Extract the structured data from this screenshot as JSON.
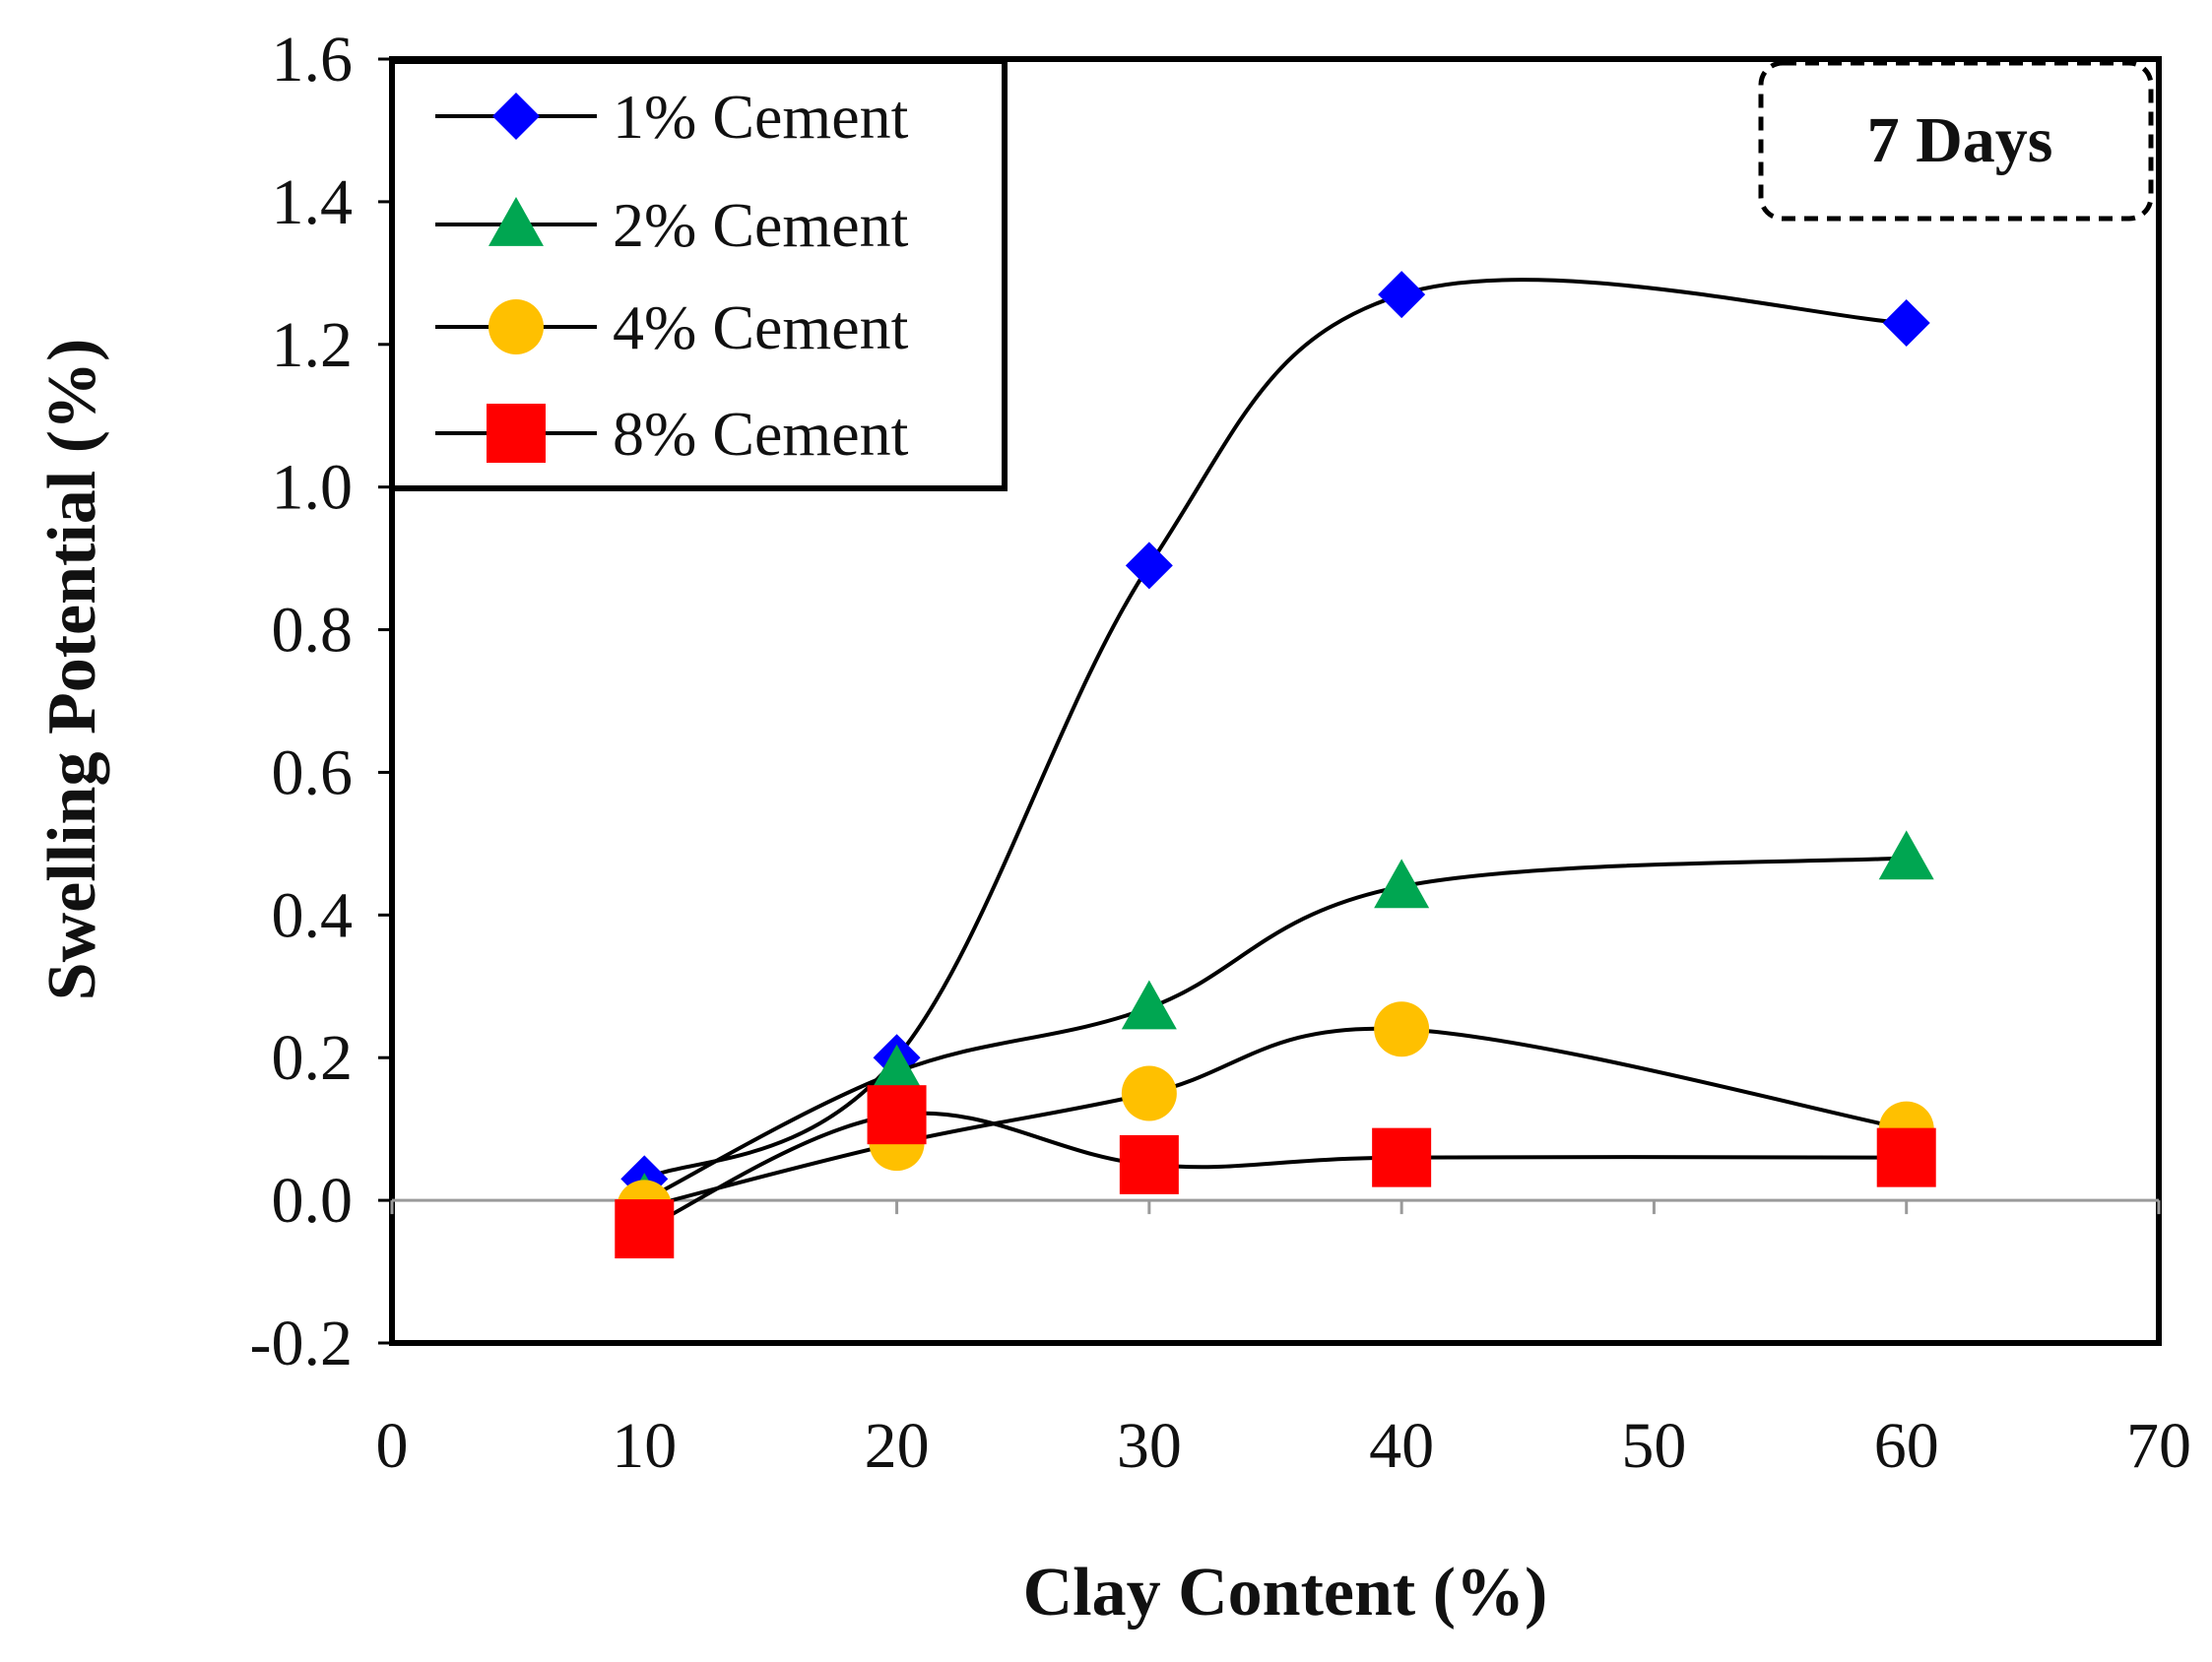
{
  "chart_data": {
    "type": "line",
    "smoothed": true,
    "xlabel": "Clay Content (%)",
    "ylabel": "Swelling Potential (%)",
    "xlim": [
      0,
      70
    ],
    "ylim": [
      -0.2,
      1.6
    ],
    "xticks": [
      "0",
      "10",
      "20",
      "30",
      "40",
      "50",
      "60",
      "70"
    ],
    "xtick_values": [
      0,
      10,
      20,
      30,
      40,
      50,
      60,
      70
    ],
    "yticks": [
      "-0.2",
      "0.0",
      "0.2",
      "0.4",
      "0.6",
      "0.8",
      "1.0",
      "1.2",
      "1.4",
      "1.6"
    ],
    "ytick_values": [
      -0.2,
      0.0,
      0.2,
      0.4,
      0.6,
      0.8,
      1.0,
      1.2,
      1.4,
      1.6
    ],
    "grid": false,
    "legend_position": "top-left",
    "annotation": "7 Days",
    "x": [
      10,
      20,
      30,
      40,
      60
    ],
    "series": [
      {
        "name": "1% Cement",
        "marker": "diamond",
        "color": "#0000ff",
        "values": [
          0.03,
          0.2,
          0.89,
          1.27,
          1.23
        ]
      },
      {
        "name": "2% Cement",
        "marker": "triangle",
        "color": "#00a651",
        "values": [
          0.0,
          0.18,
          0.27,
          0.44,
          0.48
        ]
      },
      {
        "name": "4% Cement",
        "marker": "circle",
        "color": "#ffc000",
        "values": [
          -0.01,
          0.08,
          0.15,
          0.24,
          0.1
        ]
      },
      {
        "name": "8% Cement",
        "marker": "square",
        "color": "#ff0000",
        "values": [
          -0.04,
          0.12,
          0.05,
          0.06,
          0.06
        ]
      }
    ]
  }
}
